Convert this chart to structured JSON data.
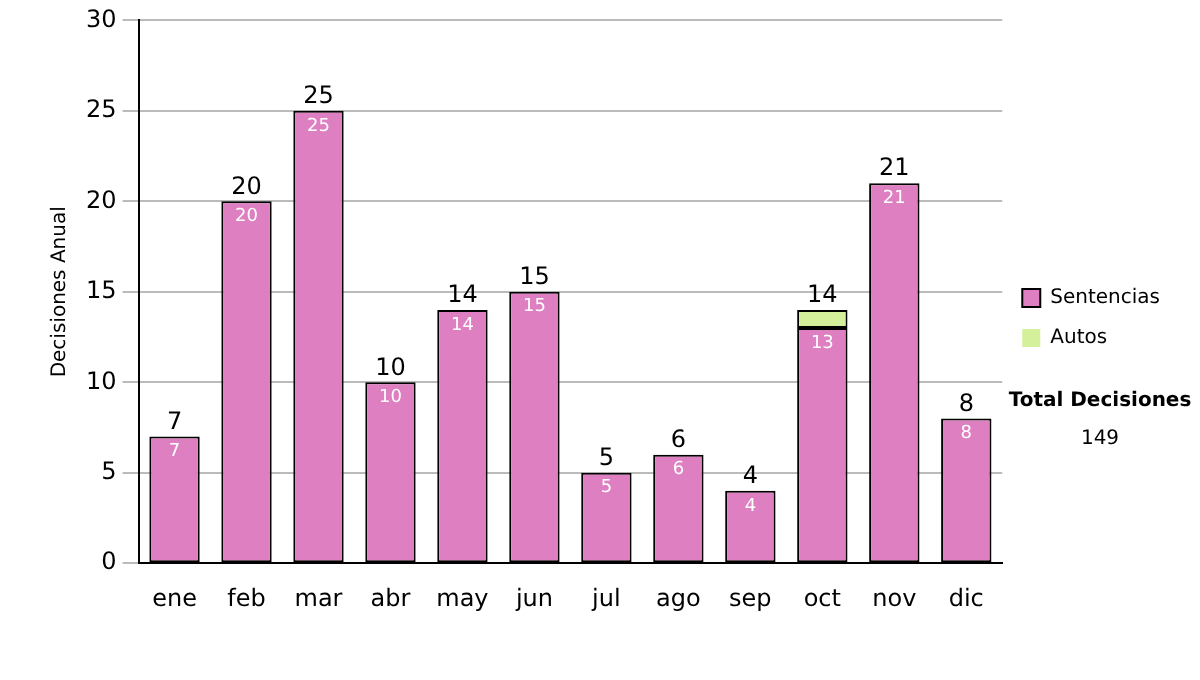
{
  "chart_data": {
    "type": "bar",
    "ylabel": "Decisiones Anual",
    "categories": [
      "ene",
      "feb",
      "mar",
      "abr",
      "may",
      "jun",
      "jul",
      "ago",
      "sep",
      "oct",
      "nov",
      "dic"
    ],
    "series": [
      {
        "name": "Sentencias",
        "color": "#dd7fc0",
        "values": [
          7,
          20,
          25,
          10,
          14,
          15,
          5,
          6,
          4,
          13,
          21,
          8
        ],
        "value_labels": [
          "7",
          "20",
          "25",
          "10",
          "14",
          "15",
          "5",
          "6",
          "4",
          "13",
          "21",
          "8"
        ]
      },
      {
        "name": "Autos",
        "color": "#d4f09a",
        "values": [
          0,
          0,
          0,
          0,
          0,
          0,
          0,
          0,
          0,
          1,
          0,
          0
        ]
      }
    ],
    "stacked": true,
    "totals": [
      "7",
      "20",
      "25",
      "10",
      "14",
      "15",
      "5",
      "6",
      "4",
      "14",
      "21",
      "8"
    ],
    "ylim": [
      0,
      30
    ],
    "yticks": [
      0,
      5,
      10,
      15,
      20,
      25,
      30
    ],
    "grid": "y",
    "legend": "right",
    "annotations": [
      "Total Decisiones",
      "149"
    ]
  }
}
